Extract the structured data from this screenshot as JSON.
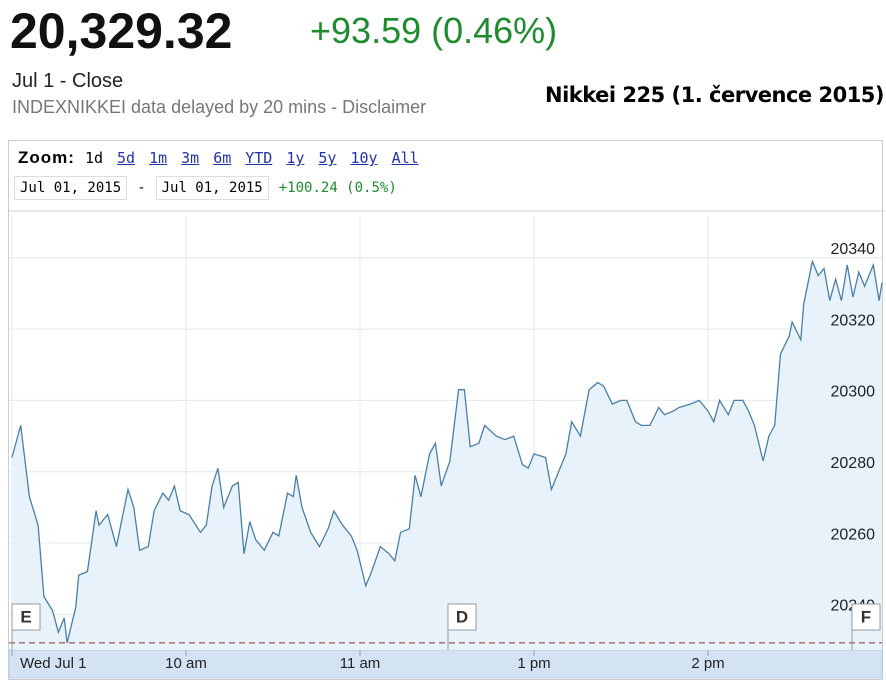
{
  "header": {
    "price": "20,329.32",
    "change": "+93.59 (0.46%)",
    "date": "Jul 1 - Close",
    "note": "INDEXNIKKEI data delayed by 20 mins - Disclaimer"
  },
  "controls": {
    "zoom_label": "Zoom:",
    "zoom_options": [
      "1d",
      "5d",
      "1m",
      "3m",
      "6m",
      "YTD",
      "1y",
      "5y",
      "10y",
      "All"
    ],
    "start_date": "Jul 01, 2015",
    "separator": "-",
    "end_date": "Jul 01, 2015",
    "range_change": "+100.24 (0.5%)"
  },
  "chart_data": {
    "type": "line",
    "title": "Nikkei 225 (1. července 2015)",
    "color": "#4a7fa8",
    "x": [
      0,
      3,
      6,
      9,
      11,
      14,
      16,
      18,
      19,
      22,
      23,
      26,
      29,
      30,
      33,
      36,
      37,
      40,
      42,
      44,
      47,
      49,
      52,
      54,
      56,
      58,
      61,
      65,
      67,
      69,
      71,
      73,
      76,
      78,
      80,
      82,
      84,
      87,
      90,
      92,
      95,
      97,
      98,
      100,
      103,
      106,
      109,
      111,
      114,
      117,
      119,
      122,
      124,
      127,
      130,
      132,
      134,
      137,
      139,
      141,
      144,
      146,
      148,
      151,
      154,
      156,
      158,
      161,
      163,
      167,
      170,
      173,
      176,
      178,
      180,
      184,
      186,
      188,
      191,
      193,
      196,
      199,
      202,
      204,
      207,
      210,
      212,
      215,
      217,
      220,
      223,
      225,
      228,
      230,
      234,
      237,
      240,
      242,
      244,
      247,
      249,
      252,
      254,
      256,
      259,
      261,
      263,
      265,
      268,
      269,
      272,
      273,
      276,
      278,
      280,
      282,
      284,
      286,
      288,
      290,
      292,
      294,
      297,
      299,
      300
    ],
    "values": [
      20284,
      20293,
      20273,
      20265,
      20245,
      20241,
      20235,
      20239,
      20232,
      20242,
      20251,
      20252,
      20269,
      20265,
      20268,
      20259,
      20263,
      20275,
      20270,
      20258,
      20259,
      20269,
      20274,
      20272,
      20276,
      20269,
      20268,
      20263,
      20265,
      20276,
      20281,
      20270,
      20276,
      20277,
      20257,
      20266,
      20261,
      20258,
      20263,
      20262,
      20274,
      20273,
      20279,
      20270,
      20263,
      20259,
      20264,
      20269,
      20265,
      20262,
      20258,
      20248,
      20252,
      20259,
      20257,
      20255,
      20263,
      20264,
      20279,
      20273,
      20285,
      20288,
      20276,
      20283,
      20303,
      20303,
      20287,
      20288,
      20293,
      20290,
      20289,
      20290,
      20282,
      20281,
      20285,
      20284,
      20275,
      20279,
      20285,
      20294,
      20290,
      20303,
      20305,
      20304,
      20299,
      20300,
      20300,
      20294,
      20293,
      20293,
      20298,
      20296,
      20297,
      20298,
      20299,
      20300,
      20297,
      20294,
      20300,
      20296,
      20300,
      20300,
      20297,
      20293,
      20283,
      20290,
      20293,
      20313,
      20318,
      20322,
      20317,
      20327,
      20339,
      20335,
      20337,
      20328,
      20334,
      20328,
      20338,
      20329,
      20336,
      20332,
      20338,
      20328,
      20333
    ],
    "xlim": [
      0,
      300
    ],
    "xticks": [
      {
        "value": 0,
        "label": "Wed Jul 1"
      },
      {
        "value": 60,
        "label": "10 am"
      },
      {
        "value": 120,
        "label": "11 am"
      },
      {
        "value": 180,
        "label": "1 pm"
      },
      {
        "value": 240,
        "label": "2 pm"
      }
    ],
    "ylim": [
      20230,
      20352
    ],
    "yticks": [
      20240,
      20260,
      20280,
      20300,
      20320,
      20340
    ],
    "grid": true,
    "reference_line": 20232,
    "flags": [
      "E",
      "D",
      "F"
    ]
  }
}
